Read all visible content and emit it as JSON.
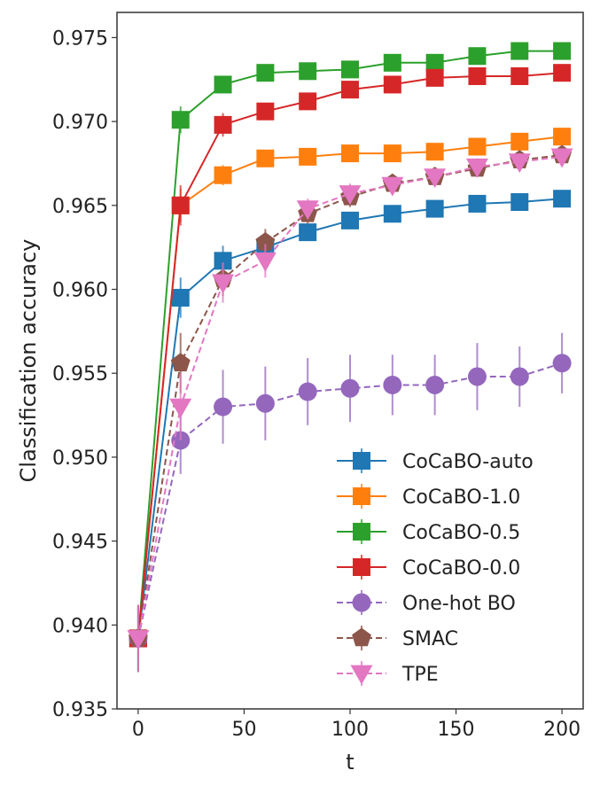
{
  "chart_data": {
    "type": "line",
    "xlabel": "t",
    "ylabel": "Classification accuracy",
    "xlim": [
      -10,
      210
    ],
    "ylim": [
      0.935,
      0.9765
    ],
    "xticks": [
      0,
      50,
      100,
      150,
      200
    ],
    "yticks": [
      0.935,
      0.94,
      0.945,
      0.95,
      0.955,
      0.96,
      0.965,
      0.97,
      0.975
    ],
    "ytick_labels": [
      "0.935",
      "0.940",
      "0.945",
      "0.950",
      "0.955",
      "0.960",
      "0.965",
      "0.970",
      "0.975"
    ],
    "xtick_labels": [
      "0",
      "50",
      "100",
      "150",
      "200"
    ],
    "grid": false,
    "legend_position": "bottom-right",
    "x": [
      0,
      20,
      40,
      60,
      80,
      100,
      120,
      140,
      160,
      180,
      200
    ],
    "series": [
      {
        "name": "CoCaBO-auto",
        "color": "#1f77b4",
        "marker": "square",
        "dashed": false,
        "values": [
          0.9392,
          0.9595,
          0.9617,
          0.9625,
          0.9634,
          0.9641,
          0.9645,
          0.9648,
          0.9651,
          0.9652,
          0.9654
        ],
        "errors": [
          0.0003,
          0.0012,
          0.0009,
          0.0006,
          0.0005,
          0.0005,
          0.0004,
          0.0004,
          0.0004,
          0.0003,
          0.0003
        ]
      },
      {
        "name": "CoCaBO-1.0",
        "color": "#ff7f0e",
        "marker": "square",
        "dashed": false,
        "values": [
          0.9392,
          0.965,
          0.9668,
          0.9678,
          0.9679,
          0.9681,
          0.9681,
          0.9682,
          0.9685,
          0.9688,
          0.9691
        ],
        "errors": [
          0.0003,
          0.001,
          0.0006,
          0.0004,
          0.0003,
          0.0003,
          0.0003,
          0.0003,
          0.0003,
          0.0003,
          0.0003
        ]
      },
      {
        "name": "CoCaBO-0.5",
        "color": "#2ca02c",
        "marker": "square",
        "dashed": false,
        "values": [
          0.9392,
          0.9701,
          0.9722,
          0.9729,
          0.973,
          0.9731,
          0.9735,
          0.9735,
          0.9739,
          0.9742,
          0.9742
        ],
        "errors": [
          0.0003,
          0.0008,
          0.0004,
          0.0003,
          0.0003,
          0.0003,
          0.0003,
          0.0003,
          0.0003,
          0.0003,
          0.0003
        ]
      },
      {
        "name": "CoCaBO-0.0",
        "color": "#d62728",
        "marker": "square",
        "dashed": false,
        "values": [
          0.9392,
          0.965,
          0.9698,
          0.9706,
          0.9712,
          0.9719,
          0.9722,
          0.9726,
          0.9727,
          0.9727,
          0.9729
        ],
        "errors": [
          0.0003,
          0.0012,
          0.0007,
          0.0005,
          0.0005,
          0.0005,
          0.0004,
          0.0004,
          0.0004,
          0.0003,
          0.0003
        ]
      },
      {
        "name": "One-hot BO",
        "color": "#9467bd",
        "marker": "circle",
        "dashed": true,
        "values": [
          0.9392,
          0.951,
          0.953,
          0.9532,
          0.9539,
          0.9541,
          0.9543,
          0.9543,
          0.9548,
          0.9548,
          0.9556
        ],
        "errors": [
          0.002,
          0.002,
          0.0022,
          0.0022,
          0.002,
          0.002,
          0.0018,
          0.0018,
          0.002,
          0.0018,
          0.0018
        ]
      },
      {
        "name": "SMAC",
        "color": "#8c564b",
        "marker": "pentagon",
        "dashed": true,
        "values": [
          0.9392,
          0.9556,
          0.9606,
          0.9628,
          0.9645,
          0.9655,
          0.9663,
          0.9667,
          0.9672,
          0.9677,
          0.968
        ],
        "errors": [
          0.002,
          0.0018,
          0.001,
          0.0008,
          0.0006,
          0.0006,
          0.0005,
          0.0005,
          0.0005,
          0.0005,
          0.0005
        ]
      },
      {
        "name": "TPE",
        "color": "#e377c2",
        "marker": "triangle-down",
        "dashed": true,
        "values": [
          0.9392,
          0.953,
          0.9604,
          0.9617,
          0.9648,
          0.9657,
          0.9662,
          0.9667,
          0.9673,
          0.9676,
          0.9679
        ],
        "errors": [
          0.002,
          0.002,
          0.0012,
          0.001,
          0.0006,
          0.0006,
          0.0005,
          0.0005,
          0.0005,
          0.0005,
          0.0005
        ]
      }
    ]
  }
}
